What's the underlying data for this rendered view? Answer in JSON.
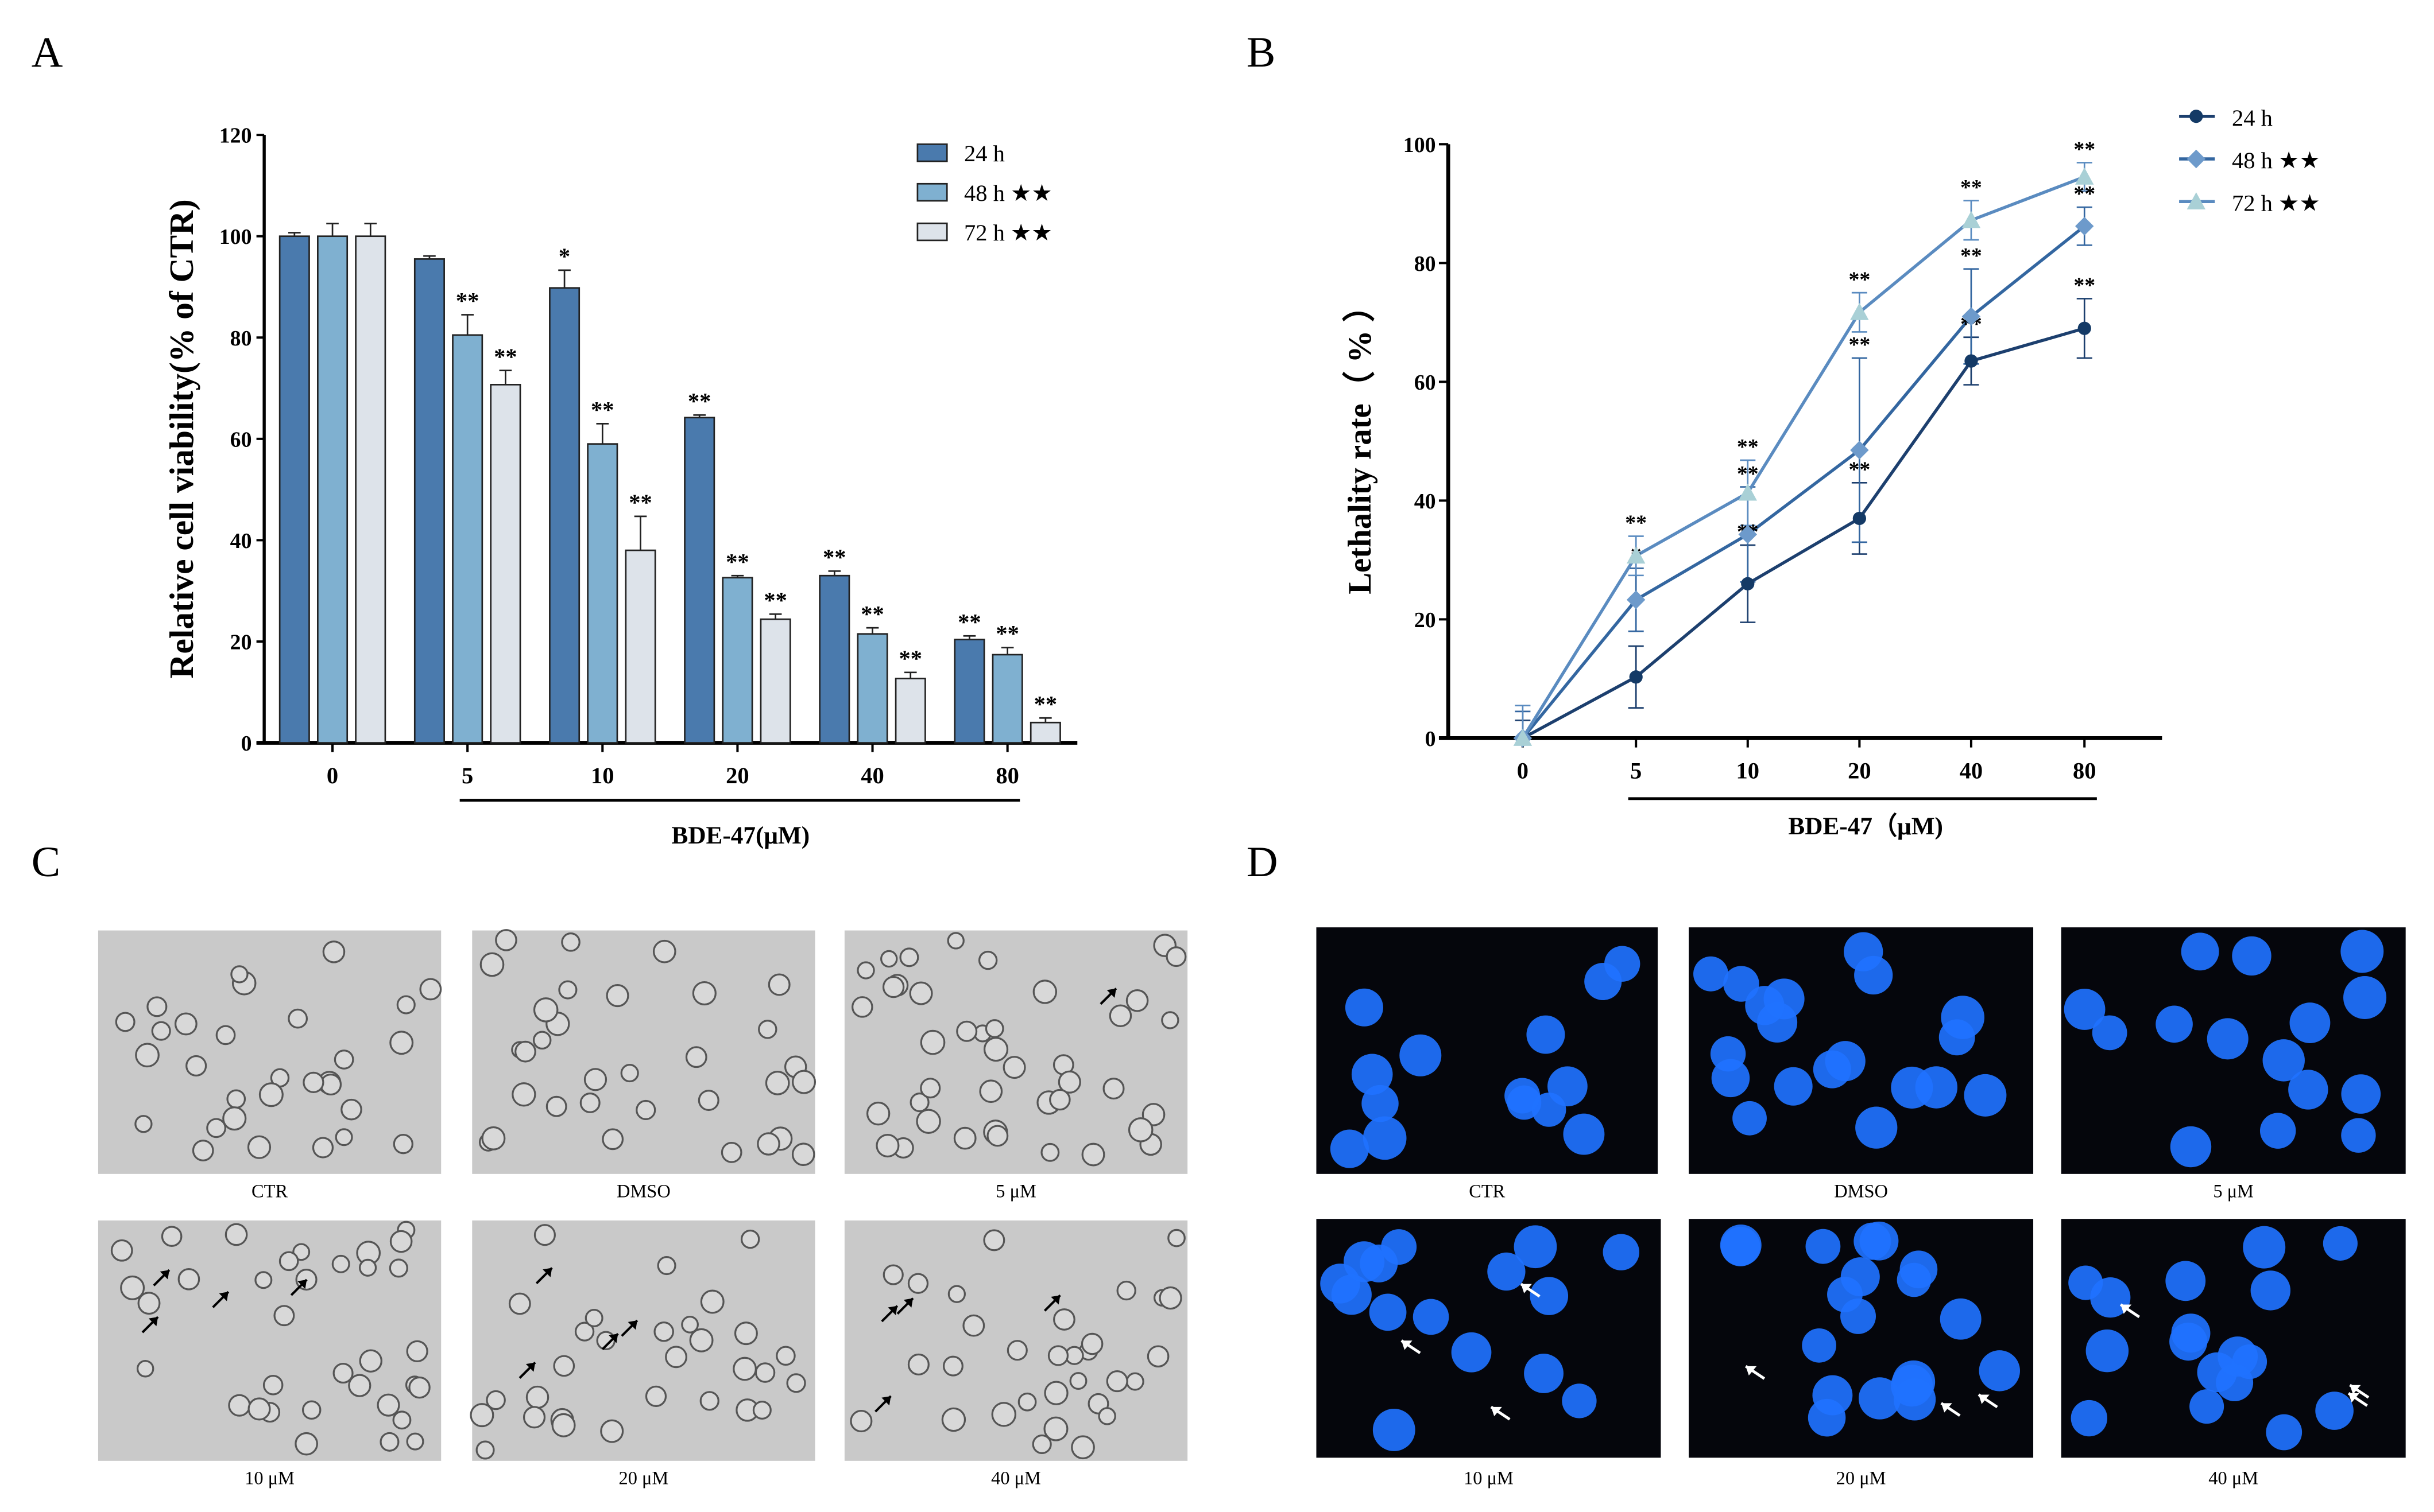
{
  "panels": {
    "a": "A",
    "b": "B",
    "c": "C",
    "d": "D"
  },
  "colors": {
    "bar_24h": "#4a7aad",
    "bar_48h": "#7fb0d0",
    "bar_72h": "#dde3ea",
    "line_24h": "#1c3f6e",
    "line_48h": "#3366a0",
    "line_72h": "#5a8bc0",
    "marker_24h": "#143a66",
    "marker_48h": "#6d9acb",
    "marker_72h": "#a9d0d6",
    "brightfield_bg": "#c9c9c9",
    "fluorescence_bg": "#05060c",
    "nucleus": "#1f72ff"
  },
  "chart_data": [
    {
      "type": "bar",
      "ylabel": "Relative cell viability(% of CTR)",
      "xlabel": "BDE-47(μM)",
      "categories": [
        "0",
        "5",
        "10",
        "20",
        "40",
        "80"
      ],
      "ylim": [
        0,
        120
      ],
      "yticks": [
        0,
        20,
        40,
        60,
        80,
        100,
        120
      ],
      "legend_position": "top-right",
      "grid": false,
      "series": [
        {
          "name": "24 h",
          "legend_mark": "",
          "values": [
            100,
            95.5,
            89.8,
            64.2,
            33.0,
            20.4
          ],
          "errors": [
            0.7,
            0.6,
            3.5,
            0.5,
            0.9,
            0.7
          ],
          "significance": [
            "",
            "",
            "*",
            "**",
            "**",
            "**"
          ]
        },
        {
          "name": "48 h",
          "legend_mark": "★★",
          "values": [
            100,
            80.5,
            59.0,
            32.6,
            21.5,
            17.4
          ],
          "errors": [
            2.5,
            4.0,
            4.0,
            0.4,
            1.2,
            1.4
          ],
          "significance": [
            "",
            "**",
            "**",
            "**",
            "**",
            "**"
          ]
        },
        {
          "name": "72 h",
          "legend_mark": "★★",
          "values": [
            100,
            70.7,
            38.0,
            24.4,
            12.7,
            4.0
          ],
          "errors": [
            2.5,
            2.8,
            6.7,
            1.0,
            1.2,
            0.9
          ],
          "significance": [
            "",
            "**",
            "**",
            "**",
            "**",
            "**"
          ]
        }
      ]
    },
    {
      "type": "line",
      "ylabel": "Lethality rate（ % ）",
      "xlabel": "BDE-47（μM)",
      "categories": [
        "0",
        "5",
        "10",
        "20",
        "40",
        "80"
      ],
      "ylim": [
        0,
        100
      ],
      "yticks": [
        0,
        20,
        40,
        60,
        80,
        100
      ],
      "legend_position": "top-right",
      "grid": false,
      "series": [
        {
          "name": "24 h",
          "legend_mark": "",
          "marker": "circle",
          "values": [
            0,
            10.3,
            26.0,
            37.0,
            63.5,
            69.0
          ],
          "errors": [
            3.0,
            5.2,
            6.5,
            6.0,
            4.0,
            5.0
          ],
          "significance": [
            "",
            "",
            "**",
            "**",
            "**",
            "**"
          ]
        },
        {
          "name": "48 h",
          "legend_mark": "★★",
          "marker": "diamond",
          "values": [
            0,
            23.3,
            34.3,
            48.5,
            71.0,
            86.2
          ],
          "errors": [
            4.5,
            5.3,
            8.0,
            15.5,
            8.0,
            3.2
          ],
          "significance": [
            "",
            "*",
            "**",
            "**",
            "**",
            "**"
          ]
        },
        {
          "name": "72 h",
          "legend_mark": "★★",
          "marker": "triangle",
          "values": [
            0,
            30.7,
            41.3,
            71.7,
            87.2,
            94.5
          ],
          "errors": [
            5.5,
            3.3,
            5.5,
            3.3,
            3.3,
            2.4
          ],
          "significance": [
            "",
            "**",
            "**",
            "**",
            "**",
            "**"
          ]
        }
      ]
    }
  ],
  "micrographs_c": [
    "CTR",
    "DMSO",
    "5 μM",
    "10 μM",
    "20 μM",
    "40 μM"
  ],
  "micrographs_d": [
    "CTR",
    "DMSO",
    "5 μM",
    "10 μM",
    "20 μM",
    "40 μM"
  ]
}
